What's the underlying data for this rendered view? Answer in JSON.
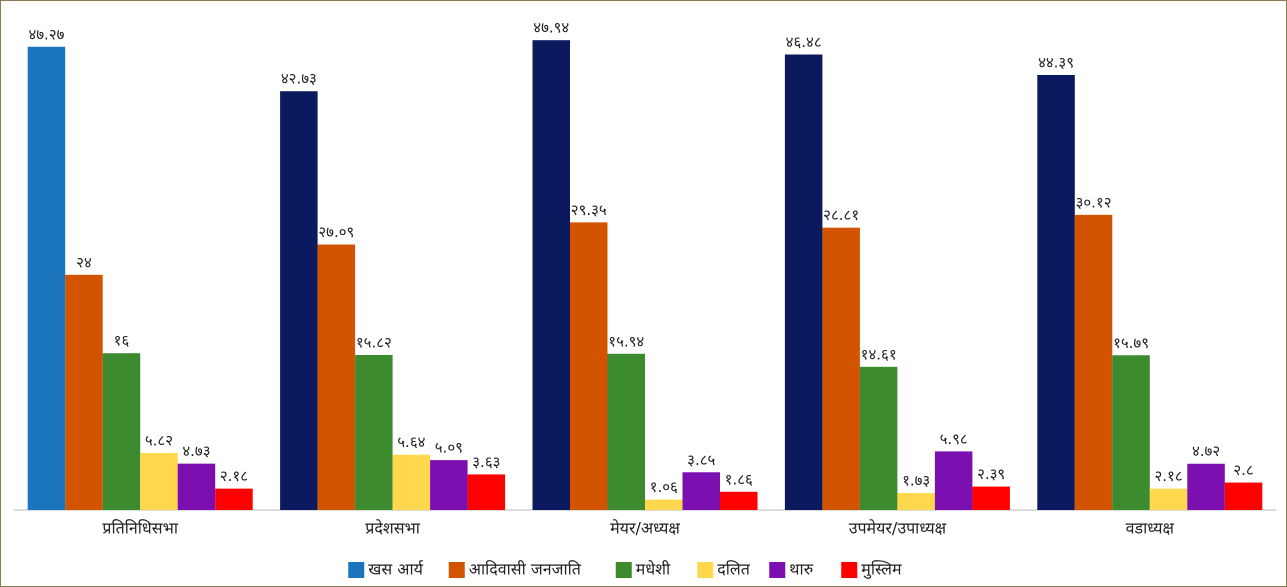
{
  "chart_data": {
    "type": "bar",
    "categories": [
      "प्रतिनिधिसभा",
      "प्रदेशसभा",
      "मेयर/अध्यक्ष",
      "उपमेयर/उपाध्यक्ष",
      "वडाध्यक्ष"
    ],
    "series": [
      {
        "name": "खस आर्य",
        "color": "#1b75bc",
        "point_colors": [
          "#1b75bc",
          "#0b1a5e",
          "#0b1a5e",
          "#0b1a5e",
          "#0b1a5e"
        ],
        "values": [
          47.27,
          42.73,
          47.94,
          46.48,
          44.39
        ],
        "value_labels": [
          "४७.२७",
          "४२.७३",
          "४७.९४",
          "४६.४८",
          "४४.३९"
        ]
      },
      {
        "name": "आदिवासी जनजाति",
        "color": "#d35400",
        "values": [
          24,
          27.09,
          29.35,
          28.81,
          30.12
        ],
        "value_labels": [
          "२४",
          "२७.०९",
          "२९.३५",
          "२८.८१",
          "३०.१२"
        ]
      },
      {
        "name": "मधेशी",
        "color": "#3d8b2f",
        "values": [
          16,
          15.82,
          15.94,
          14.61,
          15.79
        ],
        "value_labels": [
          "१६",
          "१५.८२",
          "१५.९४",
          "१४.६१",
          "१५.७९"
        ]
      },
      {
        "name": "दलित",
        "color": "#ffd84d",
        "values": [
          5.82,
          5.64,
          1.06,
          1.73,
          2.18
        ],
        "value_labels": [
          "५.८२",
          "५.६४",
          "१.०६",
          "१.७३",
          "२.१८"
        ]
      },
      {
        "name": "थारु",
        "color": "#7b0fb0",
        "values": [
          4.73,
          5.09,
          3.85,
          5.98,
          4.72
        ],
        "value_labels": [
          "४.७३",
          "५.०९",
          "३.८५",
          "५.९८",
          "४.७२"
        ]
      },
      {
        "name": "मुस्लिम",
        "color": "#ff0000",
        "values": [
          2.18,
          3.63,
          1.86,
          2.39,
          2.8
        ],
        "value_labels": [
          "२.१८",
          "३.६३",
          "१.८६",
          "२.३९",
          "२.८"
        ]
      }
    ],
    "ylim": [
      0,
      50
    ],
    "legend": "bottom"
  }
}
